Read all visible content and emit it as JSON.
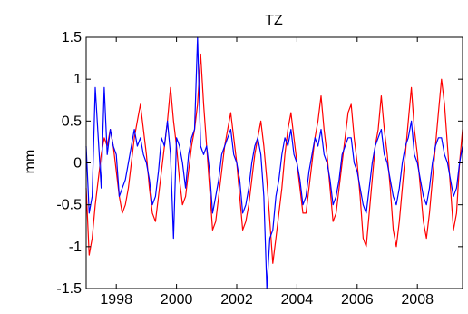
{
  "chart_data": {
    "type": "line",
    "title": "TZ",
    "xlabel": "",
    "ylabel": "mm",
    "xlim": [
      1997.0,
      2009.5
    ],
    "ylim": [
      -1.5,
      1.5
    ],
    "x_ticks": [
      1998,
      2000,
      2002,
      2004,
      2006,
      2008
    ],
    "y_ticks": [
      -1.5,
      -1,
      -0.5,
      0,
      0.5,
      1,
      1.5
    ],
    "y_tick_labels": [
      "-1.5",
      "-1",
      "-0.5",
      "0",
      "0.5",
      "1",
      "1.5"
    ],
    "grid": false,
    "legend": "none",
    "series": [
      {
        "color": "#ff0000",
        "x": [
          1997.0,
          1997.1,
          1997.2,
          1997.3,
          1997.4,
          1997.5,
          1997.6,
          1997.7,
          1997.8,
          1997.9,
          1998.0,
          1998.1,
          1998.2,
          1998.3,
          1998.4,
          1998.5,
          1998.6,
          1998.7,
          1998.8,
          1998.9,
          1999.0,
          1999.1,
          1999.2,
          1999.3,
          1999.4,
          1999.5,
          1999.6,
          1999.7,
          1999.8,
          1999.9,
          2000.0,
          2000.1,
          2000.2,
          2000.3,
          2000.4,
          2000.5,
          2000.6,
          2000.7,
          2000.8,
          2000.9,
          2001.0,
          2001.1,
          2001.2,
          2001.3,
          2001.4,
          2001.5,
          2001.6,
          2001.7,
          2001.8,
          2001.9,
          2002.0,
          2002.1,
          2002.2,
          2002.3,
          2002.4,
          2002.5,
          2002.6,
          2002.7,
          2002.8,
          2002.9,
          2003.0,
          2003.1,
          2003.2,
          2003.3,
          2003.4,
          2003.5,
          2003.6,
          2003.7,
          2003.8,
          2003.9,
          2004.0,
          2004.1,
          2004.2,
          2004.3,
          2004.4,
          2004.5,
          2004.6,
          2004.7,
          2004.8,
          2004.9,
          2005.0,
          2005.1,
          2005.2,
          2005.3,
          2005.4,
          2005.5,
          2005.6,
          2005.7,
          2005.8,
          2005.9,
          2006.0,
          2006.1,
          2006.2,
          2006.3,
          2006.4,
          2006.5,
          2006.6,
          2006.7,
          2006.8,
          2006.9,
          2007.0,
          2007.1,
          2007.2,
          2007.3,
          2007.4,
          2007.5,
          2007.6,
          2007.7,
          2007.8,
          2007.9,
          2008.0,
          2008.1,
          2008.2,
          2008.3,
          2008.4,
          2008.5,
          2008.6,
          2008.7,
          2008.8,
          2008.9,
          2009.0,
          2009.1,
          2009.2,
          2009.3,
          2009.4,
          2009.5
        ],
        "y": [
          -0.3,
          -1.1,
          -0.9,
          -0.5,
          -0.2,
          0.1,
          0.3,
          0.2,
          0.4,
          0.2,
          -0.1,
          -0.4,
          -0.6,
          -0.5,
          -0.3,
          0.0,
          0.3,
          0.5,
          0.7,
          0.4,
          0.1,
          -0.3,
          -0.6,
          -0.7,
          -0.4,
          -0.1,
          0.2,
          0.5,
          0.9,
          0.5,
          0.2,
          -0.2,
          -0.5,
          -0.4,
          -0.1,
          0.2,
          0.4,
          0.7,
          1.3,
          0.7,
          0.2,
          -0.3,
          -0.8,
          -0.7,
          -0.4,
          -0.1,
          0.2,
          0.4,
          0.6,
          0.3,
          0.0,
          -0.4,
          -0.8,
          -0.7,
          -0.5,
          -0.2,
          0.1,
          0.3,
          0.5,
          0.2,
          -0.2,
          -0.7,
          -1.2,
          -0.9,
          -0.6,
          -0.3,
          0.1,
          0.4,
          0.6,
          0.3,
          0.0,
          -0.3,
          -0.6,
          -0.6,
          -0.3,
          0.0,
          0.3,
          0.5,
          0.8,
          0.4,
          0.1,
          -0.3,
          -0.7,
          -0.6,
          -0.3,
          0.0,
          0.3,
          0.6,
          0.7,
          0.3,
          0.0,
          -0.4,
          -0.9,
          -1.0,
          -0.6,
          -0.2,
          0.2,
          0.4,
          0.8,
          0.4,
          0.1,
          -0.3,
          -0.8,
          -1.0,
          -0.7,
          -0.3,
          0.1,
          0.5,
          0.9,
          0.4,
          0.1,
          -0.3,
          -0.7,
          -0.9,
          -0.6,
          -0.2,
          0.2,
          0.6,
          1.0,
          0.7,
          0.2,
          -0.3,
          -0.8,
          -0.6,
          0.0,
          0.4
        ]
      },
      {
        "color": "#0000ff",
        "x": [
          1997.0,
          1997.1,
          1997.2,
          1997.3,
          1997.4,
          1997.5,
          1997.6,
          1997.7,
          1997.8,
          1997.9,
          1998.0,
          1998.1,
          1998.2,
          1998.3,
          1998.4,
          1998.5,
          1998.6,
          1998.7,
          1998.8,
          1998.9,
          1999.0,
          1999.1,
          1999.2,
          1999.3,
          1999.4,
          1999.5,
          1999.6,
          1999.7,
          1999.8,
          1999.9,
          2000.0,
          2000.1,
          2000.2,
          2000.3,
          2000.4,
          2000.5,
          2000.6,
          2000.7,
          2000.8,
          2000.9,
          2001.0,
          2001.1,
          2001.2,
          2001.3,
          2001.4,
          2001.5,
          2001.6,
          2001.7,
          2001.8,
          2001.9,
          2002.0,
          2002.1,
          2002.2,
          2002.3,
          2002.4,
          2002.5,
          2002.6,
          2002.7,
          2002.8,
          2002.9,
          2003.0,
          2003.1,
          2003.2,
          2003.3,
          2003.4,
          2003.5,
          2003.6,
          2003.7,
          2003.8,
          2003.9,
          2004.0,
          2004.1,
          2004.2,
          2004.3,
          2004.4,
          2004.5,
          2004.6,
          2004.7,
          2004.8,
          2004.9,
          2005.0,
          2005.1,
          2005.2,
          2005.3,
          2005.4,
          2005.5,
          2005.6,
          2005.7,
          2005.8,
          2005.9,
          2006.0,
          2006.1,
          2006.2,
          2006.3,
          2006.4,
          2006.5,
          2006.6,
          2006.7,
          2006.8,
          2006.9,
          2007.0,
          2007.1,
          2007.2,
          2007.3,
          2007.4,
          2007.5,
          2007.6,
          2007.7,
          2007.8,
          2007.9,
          2008.0,
          2008.1,
          2008.2,
          2008.3,
          2008.4,
          2008.5,
          2008.6,
          2008.7,
          2008.8,
          2008.9,
          2009.0,
          2009.1,
          2009.2,
          2009.3,
          2009.4,
          2009.5
        ],
        "y": [
          0.2,
          -0.6,
          -0.4,
          0.9,
          0.3,
          -0.3,
          0.9,
          0.1,
          0.4,
          0.2,
          0.1,
          -0.4,
          -0.3,
          -0.2,
          0.0,
          0.2,
          0.4,
          0.2,
          0.3,
          0.1,
          0.0,
          -0.2,
          -0.5,
          -0.4,
          -0.1,
          0.3,
          0.2,
          0.5,
          0.1,
          -0.9,
          0.3,
          0.2,
          0.0,
          -0.3,
          0.1,
          0.3,
          0.4,
          1.5,
          0.2,
          0.1,
          0.2,
          -0.1,
          -0.6,
          -0.4,
          -0.2,
          0.1,
          0.2,
          0.3,
          0.4,
          0.1,
          0.0,
          -0.2,
          -0.6,
          -0.5,
          -0.3,
          0.0,
          0.2,
          0.3,
          0.1,
          -0.4,
          -1.5,
          -0.9,
          -0.8,
          -0.4,
          -0.2,
          0.1,
          0.3,
          0.2,
          0.4,
          0.1,
          0.0,
          -0.2,
          -0.5,
          -0.4,
          -0.1,
          0.1,
          0.3,
          0.2,
          0.4,
          0.1,
          0.0,
          -0.2,
          -0.5,
          -0.4,
          -0.2,
          0.1,
          0.2,
          0.3,
          0.3,
          0.0,
          -0.1,
          -0.3,
          -0.5,
          -0.6,
          -0.3,
          0.0,
          0.2,
          0.3,
          0.4,
          0.1,
          0.0,
          -0.2,
          -0.4,
          -0.5,
          -0.3,
          0.0,
          0.2,
          0.3,
          0.5,
          0.1,
          0.0,
          -0.2,
          -0.4,
          -0.5,
          -0.3,
          0.0,
          0.2,
          0.3,
          0.3,
          0.1,
          0.0,
          -0.2,
          -0.4,
          -0.3,
          0.0,
          0.2
        ]
      }
    ]
  }
}
